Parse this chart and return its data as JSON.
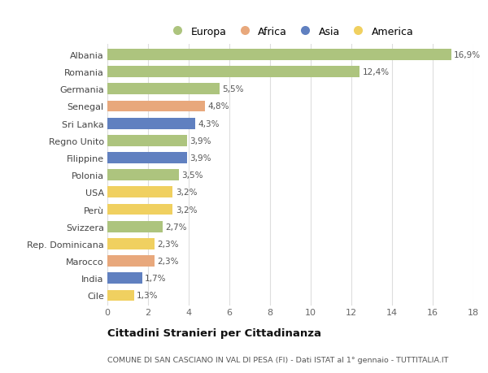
{
  "countries": [
    "Albania",
    "Romania",
    "Germania",
    "Senegal",
    "Sri Lanka",
    "Regno Unito",
    "Filippine",
    "Polonia",
    "USA",
    "Perù",
    "Svizzera",
    "Rep. Dominicana",
    "Marocco",
    "India",
    "Cile"
  ],
  "values": [
    16.9,
    12.4,
    5.5,
    4.8,
    4.3,
    3.9,
    3.9,
    3.5,
    3.2,
    3.2,
    2.7,
    2.3,
    2.3,
    1.7,
    1.3
  ],
  "categories": [
    "Europa",
    "Europa",
    "Europa",
    "Africa",
    "Asia",
    "Europa",
    "Asia",
    "Europa",
    "America",
    "America",
    "Europa",
    "America",
    "Africa",
    "Asia",
    "America"
  ],
  "colors": {
    "Europa": "#adc47e",
    "Africa": "#e8a87c",
    "Asia": "#6080c0",
    "America": "#f0d060"
  },
  "legend_order": [
    "Europa",
    "Africa",
    "Asia",
    "America"
  ],
  "xlim": [
    0,
    18
  ],
  "xticks": [
    0,
    2,
    4,
    6,
    8,
    10,
    12,
    14,
    16,
    18
  ],
  "title": "Cittadini Stranieri per Cittadinanza",
  "subtitle": "COMUNE DI SAN CASCIANO IN VAL DI PESA (FI) - Dati ISTAT al 1° gennaio - TUTTITALIA.IT",
  "bg_color": "#ffffff",
  "bar_height": 0.65
}
